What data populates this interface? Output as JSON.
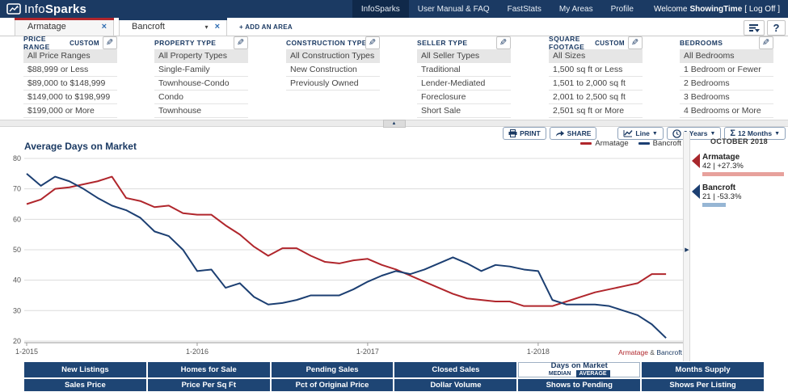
{
  "nav": {
    "logo_prefix": "Info",
    "logo_suffix": "Sparks",
    "items": [
      {
        "label": "InfoSparks",
        "active": true
      },
      {
        "label": "User Manual & FAQ",
        "active": false
      },
      {
        "label": "FastStats",
        "active": false
      },
      {
        "label": "My Areas",
        "active": false
      },
      {
        "label": "Profile",
        "active": false
      }
    ],
    "welcome_prefix": "Welcome",
    "welcome_user": "ShowingTime",
    "logoff": "[ Log Off ]"
  },
  "tabs": {
    "areas": [
      {
        "label": "Armatage",
        "color": "#b0262c",
        "close": "×"
      },
      {
        "label": "Bancroft",
        "color": "#1b3a63",
        "caret": "▾",
        "close": "×"
      }
    ],
    "add_label": "+ ADD AN AREA",
    "help_label": "?"
  },
  "filters": [
    {
      "title": "PRICE RANGE",
      "custom": "CUSTOM",
      "items": [
        "All Price Ranges",
        "$88,999 or Less",
        "$89,000 to $148,999",
        "$149,000 to $198,999",
        "$199,000 or More"
      ]
    },
    {
      "title": "PROPERTY TYPE",
      "custom": "",
      "items": [
        "All Property Types",
        "Single-Family",
        "Townhouse-Condo",
        "Condo",
        "Townhouse"
      ]
    },
    {
      "title": "CONSTRUCTION TYPE",
      "custom": "",
      "items": [
        "All Construction Types",
        "New Construction",
        "Previously Owned"
      ]
    },
    {
      "title": "SELLER TYPE",
      "custom": "",
      "items": [
        "All Seller Types",
        "Traditional",
        "Lender-Mediated",
        "Foreclosure",
        "Short Sale"
      ]
    },
    {
      "title": "SQUARE FOOTAGE",
      "custom": "CUSTOM",
      "items": [
        "All Sizes",
        "1,500 sq ft or Less",
        "1,501 to 2,000 sq ft",
        "2,001 to 2,500 sq ft",
        "2,501 sq ft or More"
      ]
    },
    {
      "title": "BEDROOMS",
      "custom": "",
      "items": [
        "All Bedrooms",
        "1 Bedroom or Fewer",
        "2 Bedrooms",
        "3 Bedrooms",
        "4 Bedrooms or More"
      ]
    }
  ],
  "toolbar": {
    "print": "PRINT",
    "share": "SHARE",
    "chart_type": "Line",
    "time_span": "3 Years",
    "rolling": "12 Months",
    "sigma": "Σ"
  },
  "chart_data": {
    "type": "line",
    "title": "Average Days on Market",
    "ylim": [
      20,
      80
    ],
    "y_ticks": [
      80,
      70,
      60,
      50,
      40,
      30,
      20
    ],
    "x_tick_labels": [
      "1-2015",
      "1-2016",
      "1-2017",
      "1-2018"
    ],
    "x_tick_indices": [
      0,
      12,
      24,
      36
    ],
    "x_start": "1-2015",
    "x_end": "10-2018",
    "grid": true,
    "legend_position": "top-right",
    "series": [
      {
        "name": "Armatage",
        "color": "#b0262c",
        "values": [
          65,
          66.5,
          70,
          70.5,
          71.5,
          72.5,
          74,
          67,
          66,
          64,
          64.5,
          62,
          61.5,
          61.5,
          58,
          55,
          51,
          48,
          50.5,
          50.5,
          48,
          46,
          45.5,
          46.5,
          47,
          45,
          43.5,
          41.5,
          39.5,
          37.5,
          35.5,
          34,
          33.5,
          33,
          33,
          31.5,
          31.5,
          31.5,
          33,
          34.5,
          36,
          37,
          38,
          39,
          42,
          42
        ]
      },
      {
        "name": "Bancroft",
        "color": "#1c3f72",
        "values": [
          75,
          71,
          74,
          72.5,
          70,
          67,
          64.5,
          63,
          60.5,
          56,
          54.5,
          50,
          43,
          43.5,
          37.5,
          39,
          34.5,
          32,
          32.5,
          33.5,
          35,
          35,
          35,
          37,
          39.5,
          41.5,
          43,
          42,
          43.5,
          45.5,
          47.5,
          45.5,
          43,
          45,
          44.5,
          43.5,
          43,
          33.5,
          32,
          32,
          32,
          31.5,
          30,
          28.5,
          25.5,
          21
        ]
      }
    ]
  },
  "summary": {
    "month": "OCTOBER 2018",
    "entries": [
      {
        "name": "Armatage",
        "value": "42 | +27.3%",
        "marker_color": "#a8272c",
        "bar_color": "#e7a19c",
        "bar_pct": 97
      },
      {
        "name": "Bancroft",
        "value": "21 | -53.3%",
        "marker_color": "#1c3f72",
        "bar_color": "#96b6d4",
        "bar_pct": 28
      }
    ]
  },
  "footnote": {
    "area1": "Armatage",
    "sep": " & ",
    "area2": "Bancroft"
  },
  "metrics": {
    "row1": [
      "New Listings",
      "Homes for Sale",
      "Pending Sales",
      "Closed Sales",
      "Days on Market",
      "Months Supply"
    ],
    "row2": [
      "Sales Price",
      "Price Per Sq Ft",
      "Pct of Original Price",
      "Dollar Volume",
      "Shows to Pending",
      "Shows Per Listing"
    ],
    "active_metric": "Days on Market",
    "active_sub": [
      "MEDIAN",
      "AVERAGE"
    ]
  }
}
